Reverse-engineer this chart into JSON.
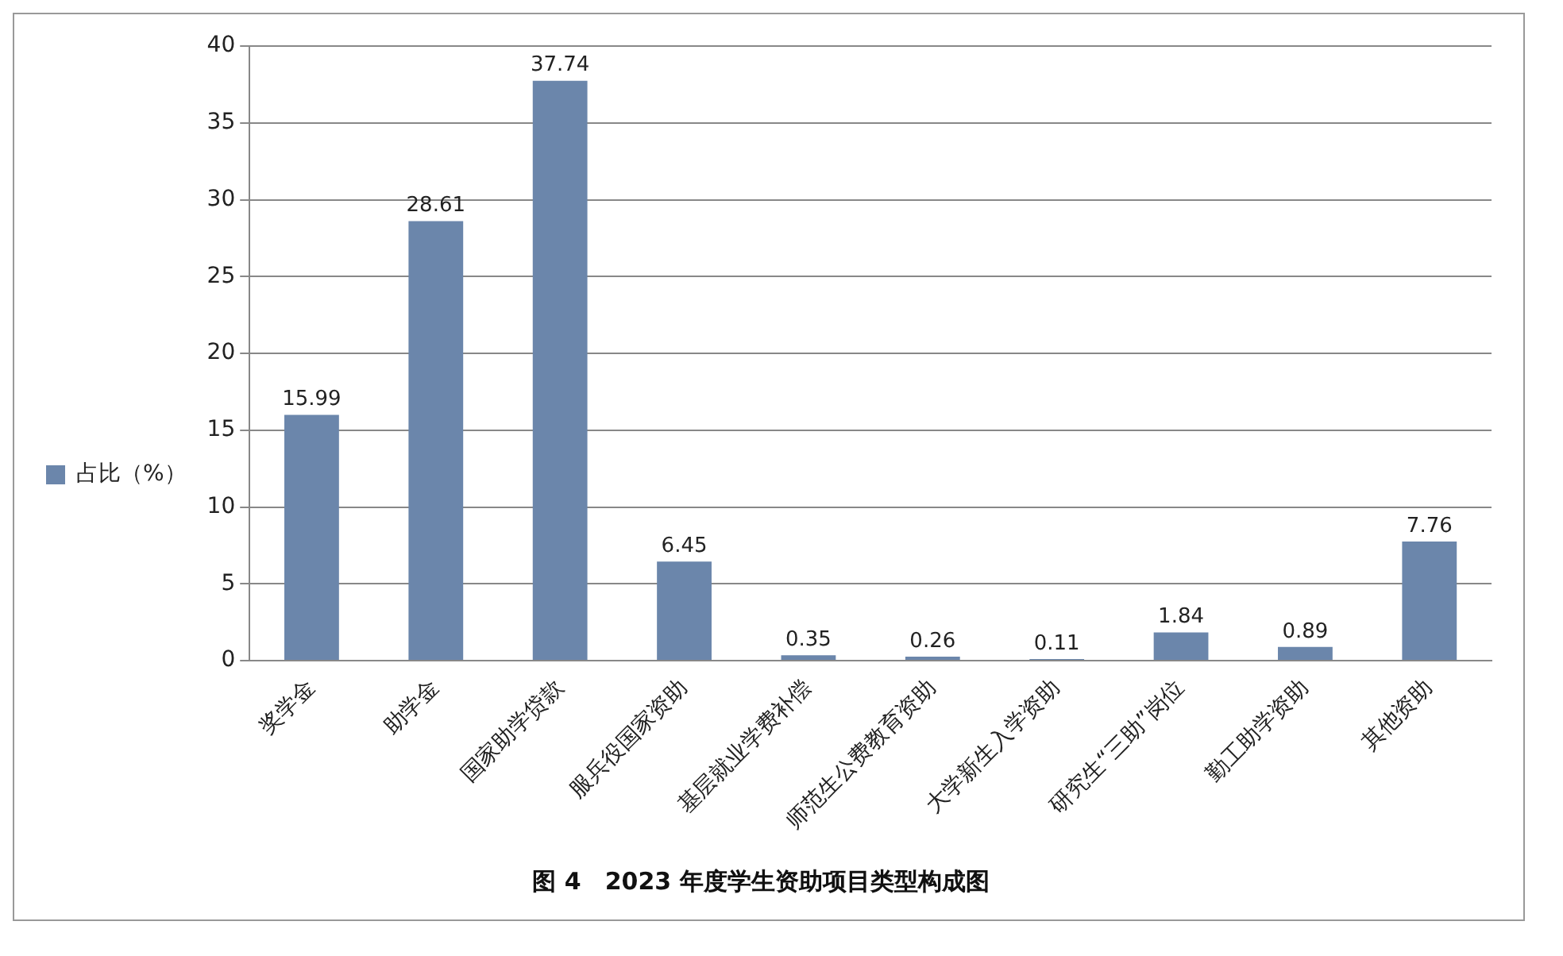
{
  "chart_data": {
    "type": "bar",
    "title": "图 4　2023 年度学生资助项目类型构成图",
    "categories": [
      "奖学金",
      "助学金",
      "国家助学贷款",
      "服兵役国家资助",
      "基层就业学费补偿",
      "师范生公费教育资助",
      "大学新生入学资助",
      "研究生“三助”岗位",
      "勤工助学资助",
      "其他资助"
    ],
    "series": [
      {
        "name": "占比（%）",
        "color": "#6b86ab",
        "values": [
          15.99,
          28.61,
          37.74,
          6.45,
          0.35,
          0.26,
          0.11,
          1.84,
          0.89,
          7.76
        ]
      }
    ],
    "ylim": [
      0,
      40
    ],
    "yticks": [
      0,
      5,
      10,
      15,
      20,
      25,
      30,
      35,
      40
    ],
    "grid": "y",
    "legend": "left",
    "data_labels": true
  }
}
